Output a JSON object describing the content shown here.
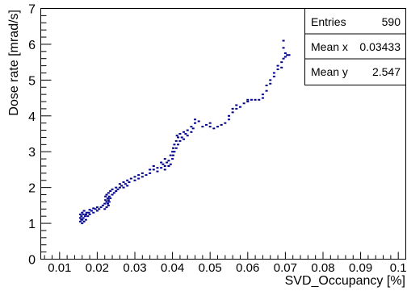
{
  "chart_data": {
    "type": "scatter",
    "title": "",
    "xlabel": "SVD_Occupancy [%]",
    "ylabel": "Dose rate [mrad/s]",
    "xlim": [
      0.005,
      0.102
    ],
    "ylim": [
      0,
      7
    ],
    "grid": false,
    "x_ticks": [
      "0.01",
      "0.02",
      "0.03",
      "0.04",
      "0.05",
      "0.06",
      "0.07",
      "0.08",
      "0.09",
      "0.1"
    ],
    "y_ticks": [
      "0",
      "1",
      "2",
      "3",
      "4",
      "5",
      "6",
      "7"
    ],
    "marker_color": "#00008b",
    "stats_box": {
      "position": "top-right",
      "rows": [
        {
          "label": "Entries",
          "value": "590"
        },
        {
          "label": "Mean x",
          "value": "0.03433"
        },
        {
          "label": "Mean y",
          "value": "2.547"
        }
      ]
    },
    "series": [
      {
        "points": [
          [
            0.0155,
            1.05
          ],
          [
            0.0155,
            1.15
          ],
          [
            0.0155,
            1.25
          ],
          [
            0.0158,
            1.1
          ],
          [
            0.0158,
            1.2
          ],
          [
            0.016,
            1.0
          ],
          [
            0.016,
            1.1
          ],
          [
            0.016,
            1.3
          ],
          [
            0.0163,
            1.15
          ],
          [
            0.0163,
            1.25
          ],
          [
            0.0165,
            1.05
          ],
          [
            0.0165,
            1.35
          ],
          [
            0.0168,
            1.2
          ],
          [
            0.017,
            1.1
          ],
          [
            0.017,
            1.25
          ],
          [
            0.0172,
            1.3
          ],
          [
            0.0175,
            1.2
          ],
          [
            0.0178,
            1.3
          ],
          [
            0.018,
            1.25
          ],
          [
            0.018,
            1.38
          ],
          [
            0.0185,
            1.35
          ],
          [
            0.019,
            1.3
          ],
          [
            0.019,
            1.42
          ],
          [
            0.0195,
            1.4
          ],
          [
            0.02,
            1.35
          ],
          [
            0.02,
            1.45
          ],
          [
            0.0205,
            1.4
          ],
          [
            0.021,
            1.45
          ],
          [
            0.0215,
            1.5
          ],
          [
            0.022,
            1.4
          ],
          [
            0.022,
            1.55
          ],
          [
            0.0222,
            1.65
          ],
          [
            0.0222,
            1.75
          ],
          [
            0.0225,
            1.45
          ],
          [
            0.0225,
            1.6
          ],
          [
            0.0225,
            1.8
          ],
          [
            0.0228,
            1.55
          ],
          [
            0.0228,
            1.7
          ],
          [
            0.023,
            1.5
          ],
          [
            0.023,
            1.65
          ],
          [
            0.023,
            1.85
          ],
          [
            0.0232,
            1.6
          ],
          [
            0.0232,
            1.75
          ],
          [
            0.0235,
            1.7
          ],
          [
            0.0235,
            1.9
          ],
          [
            0.024,
            1.8
          ],
          [
            0.024,
            1.95
          ],
          [
            0.0245,
            1.85
          ],
          [
            0.025,
            1.9
          ],
          [
            0.025,
            2.0
          ],
          [
            0.0255,
            1.95
          ],
          [
            0.026,
            2.0
          ],
          [
            0.026,
            2.1
          ],
          [
            0.0265,
            2.05
          ],
          [
            0.027,
            2.0
          ],
          [
            0.027,
            2.15
          ],
          [
            0.0275,
            2.1
          ],
          [
            0.028,
            2.05
          ],
          [
            0.028,
            2.2
          ],
          [
            0.0285,
            2.15
          ],
          [
            0.029,
            2.25
          ],
          [
            0.03,
            2.2
          ],
          [
            0.03,
            2.3
          ],
          [
            0.031,
            2.25
          ],
          [
            0.031,
            2.35
          ],
          [
            0.032,
            2.3
          ],
          [
            0.032,
            2.4
          ],
          [
            0.033,
            2.35
          ],
          [
            0.034,
            2.4
          ],
          [
            0.034,
            2.5
          ],
          [
            0.035,
            2.5
          ],
          [
            0.035,
            2.6
          ],
          [
            0.036,
            2.45
          ],
          [
            0.036,
            2.55
          ],
          [
            0.037,
            2.55
          ],
          [
            0.037,
            2.7
          ],
          [
            0.0375,
            2.65
          ],
          [
            0.038,
            2.5
          ],
          [
            0.038,
            2.6
          ],
          [
            0.038,
            2.8
          ],
          [
            0.0385,
            2.7
          ],
          [
            0.039,
            2.6
          ],
          [
            0.039,
            2.75
          ],
          [
            0.0395,
            2.65
          ],
          [
            0.0395,
            2.9
          ],
          [
            0.04,
            2.8
          ],
          [
            0.04,
            3.0
          ],
          [
            0.0402,
            2.9
          ],
          [
            0.0402,
            3.1
          ],
          [
            0.0405,
            3.0
          ],
          [
            0.0405,
            3.2
          ],
          [
            0.041,
            3.1
          ],
          [
            0.041,
            3.3
          ],
          [
            0.0412,
            3.45
          ],
          [
            0.0415,
            3.2
          ],
          [
            0.0415,
            3.4
          ],
          [
            0.042,
            3.3
          ],
          [
            0.042,
            3.5
          ],
          [
            0.0425,
            3.4
          ],
          [
            0.043,
            3.35
          ],
          [
            0.043,
            3.55
          ],
          [
            0.0435,
            3.5
          ],
          [
            0.044,
            3.45
          ],
          [
            0.044,
            3.6
          ],
          [
            0.045,
            3.55
          ],
          [
            0.045,
            3.7
          ],
          [
            0.0455,
            3.65
          ],
          [
            0.046,
            3.8
          ],
          [
            0.046,
            3.9
          ],
          [
            0.047,
            3.85
          ],
          [
            0.048,
            3.7
          ],
          [
            0.049,
            3.75
          ],
          [
            0.05,
            3.7
          ],
          [
            0.05,
            3.8
          ],
          [
            0.051,
            3.65
          ],
          [
            0.052,
            3.7
          ],
          [
            0.053,
            3.75
          ],
          [
            0.054,
            3.8
          ],
          [
            0.055,
            3.9
          ],
          [
            0.055,
            4.0
          ],
          [
            0.056,
            4.1
          ],
          [
            0.056,
            4.2
          ],
          [
            0.057,
            4.3
          ],
          [
            0.057,
            4.2
          ],
          [
            0.058,
            4.25
          ],
          [
            0.059,
            4.35
          ],
          [
            0.06,
            4.4
          ],
          [
            0.06,
            4.45
          ],
          [
            0.061,
            4.45
          ],
          [
            0.062,
            4.45
          ],
          [
            0.063,
            4.45
          ],
          [
            0.064,
            4.5
          ],
          [
            0.064,
            4.6
          ],
          [
            0.065,
            4.7
          ],
          [
            0.065,
            4.85
          ],
          [
            0.066,
            4.9
          ],
          [
            0.066,
            5.0
          ],
          [
            0.067,
            5.1
          ],
          [
            0.067,
            5.2
          ],
          [
            0.068,
            5.3
          ],
          [
            0.068,
            5.4
          ],
          [
            0.069,
            5.35
          ],
          [
            0.069,
            5.5
          ],
          [
            0.0695,
            5.6
          ],
          [
            0.07,
            5.65
          ],
          [
            0.07,
            5.75
          ],
          [
            0.0705,
            5.7
          ],
          [
            0.071,
            5.7
          ],
          [
            0.0695,
            5.9
          ],
          [
            0.0695,
            6.1
          ]
        ]
      }
    ]
  }
}
